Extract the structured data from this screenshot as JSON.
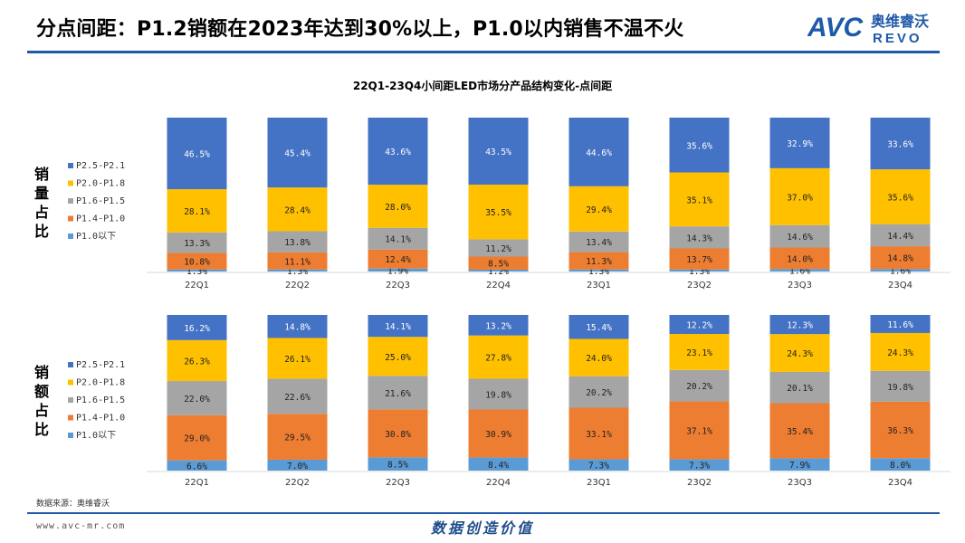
{
  "header": {
    "title": "分点间距：P1.2销额在2023年达到30%以上，P1.0以内销售不温不火",
    "logo_text": "AVC",
    "logo_cn": "奥维睿沃",
    "logo_sub": "REVO"
  },
  "chart_title": "22Q1-23Q4小间距LED市场分产品结构变化-点间距",
  "chart_data": [
    {
      "type": "bar",
      "stacked": true,
      "percent": true,
      "ylabel": "销量占比",
      "categories": [
        "22Q1",
        "22Q2",
        "22Q3",
        "22Q4",
        "23Q1",
        "23Q2",
        "23Q3",
        "23Q4"
      ],
      "series": [
        {
          "name": "P1.0以下",
          "color": "#5b9bd5",
          "values": [
            1.3,
            1.3,
            1.9,
            1.2,
            1.3,
            1.3,
            1.6,
            1.6
          ]
        },
        {
          "name": "P1.4-P1.0",
          "color": "#ed7d31",
          "values": [
            10.8,
            11.1,
            12.4,
            8.5,
            11.3,
            13.7,
            14.0,
            14.8
          ]
        },
        {
          "name": "P1.6-P1.5",
          "color": "#a5a5a5",
          "values": [
            13.3,
            13.8,
            14.1,
            11.2,
            13.4,
            14.3,
            14.6,
            14.4
          ]
        },
        {
          "name": "P2.0-P1.8",
          "color": "#ffc000",
          "values": [
            28.1,
            28.4,
            28.0,
            35.5,
            29.4,
            35.1,
            37.0,
            35.6
          ]
        },
        {
          "name": "P2.5-P2.1",
          "color": "#4472c4",
          "values": [
            46.5,
            45.4,
            43.6,
            43.5,
            44.6,
            35.6,
            32.9,
            33.6
          ]
        }
      ],
      "labels": [
        [
          "1.3%",
          "1.3%",
          "1.9%",
          "1.2%",
          "1.3%",
          "1.3%",
          "1.6%",
          "1.6%"
        ],
        [
          "10.8%",
          "11.1%",
          "12.4%",
          "8.5%",
          "11.3%",
          "13.7%",
          "14.0%",
          "14.8%"
        ],
        [
          "13.3%",
          "13.8%",
          "14.1%",
          "11.2%",
          "13.4%",
          "14.3%",
          "14.6%",
          "14.4%"
        ],
        [
          "28.1%",
          "28.4%",
          "28.0%",
          "35.5%",
          "29.4%",
          "35.1%",
          "37.0%",
          "35.6%"
        ],
        [
          "46.5%",
          "45.4%",
          "43.6%",
          "43.5%",
          "44.6%",
          "35.6%",
          "32.9%",
          "33.6%"
        ]
      ]
    },
    {
      "type": "bar",
      "stacked": true,
      "percent": true,
      "ylabel": "销额占比",
      "categories": [
        "22Q1",
        "22Q2",
        "22Q3",
        "22Q4",
        "23Q1",
        "23Q2",
        "23Q3",
        "23Q4"
      ],
      "series": [
        {
          "name": "P1.0以下",
          "color": "#5b9bd5",
          "values": [
            6.6,
            7.0,
            8.5,
            8.4,
            7.3,
            7.3,
            7.9,
            8.0
          ]
        },
        {
          "name": "P1.4-P1.0",
          "color": "#ed7d31",
          "values": [
            29.0,
            29.5,
            30.8,
            30.9,
            33.1,
            37.1,
            35.4,
            36.3
          ]
        },
        {
          "name": "P1.6-P1.5",
          "color": "#a5a5a5",
          "values": [
            22.0,
            22.6,
            21.6,
            19.8,
            20.2,
            20.2,
            20.1,
            19.8
          ]
        },
        {
          "name": "P2.0-P1.8",
          "color": "#ffc000",
          "values": [
            26.3,
            26.1,
            25.0,
            27.8,
            24.0,
            23.1,
            24.3,
            24.3
          ]
        },
        {
          "name": "P2.5-P2.1",
          "color": "#4472c4",
          "values": [
            16.2,
            14.8,
            14.1,
            13.2,
            15.4,
            12.2,
            12.3,
            11.6
          ]
        }
      ],
      "labels": [
        [
          "6.6%",
          "7.0%",
          "8.5%",
          "8.4%",
          "7.3%",
          "7.3%",
          "7.9%",
          "8.0%"
        ],
        [
          "29.0%",
          "29.5%",
          "30.8%",
          "30.9%",
          "33.1%",
          "37.1%",
          "35.4%",
          "36.3%"
        ],
        [
          "22.0%",
          "22.6%",
          "21.6%",
          "19.8%",
          "20.2%",
          "20.2%",
          "20.1%",
          "19.8%"
        ],
        [
          "26.3%",
          "26.1%",
          "25.0%",
          "27.8%",
          "24.0%",
          "23.1%",
          "24.3%",
          "24.3%"
        ],
        [
          "16.2%",
          "14.8%",
          "14.1%",
          "13.2%",
          "15.4%",
          "12.2%",
          "12.3%",
          "11.6%"
        ]
      ]
    }
  ],
  "source": "数据来源：奥维睿沃",
  "footer": {
    "url": "www.avc-mr.com",
    "slogan": "数据创造价值"
  }
}
